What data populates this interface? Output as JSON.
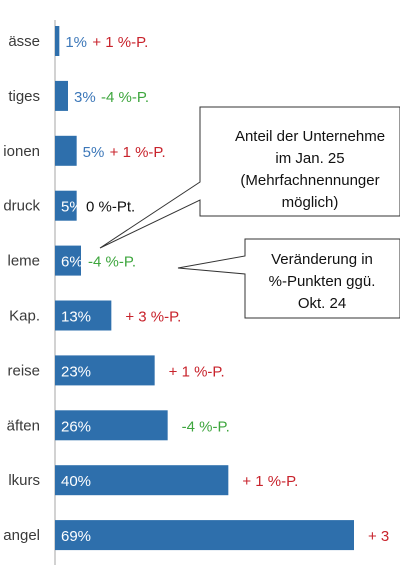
{
  "colors": {
    "bar": "#2e6fac",
    "value_on_bar": "#ffffff",
    "value_outside": "#3d78b9",
    "value_dark": "#111111",
    "change_positive": "#c8232c",
    "change_negative": "#3ea63e",
    "change_neutral": "#111111",
    "axis": "#a6a6a6",
    "callout_border": "#333333"
  },
  "chart_data": {
    "type": "bar",
    "orientation": "horizontal",
    "categories": [
      "ässe",
      "tiges",
      "ionen",
      "druck",
      "leme",
      "Kap.",
      "reise",
      "äften",
      "lkurs",
      "angel"
    ],
    "value_labels": [
      "1%",
      "3%",
      "5%",
      "5%",
      "6%",
      "13%",
      "23%",
      "26%",
      "40%",
      "69%"
    ],
    "values": [
      1,
      3,
      5,
      5,
      6,
      13,
      23,
      26,
      40,
      69
    ],
    "value_unit": "%",
    "changes": [
      1,
      -4,
      1,
      0,
      -4,
      3,
      1,
      -4,
      1,
      3
    ],
    "change_labels": [
      "+ 1 %-P.",
      "-4 %-P.",
      "+ 1 %-P.",
      "0 %-Pt.",
      "-4 %-P.",
      "+ 3 %-P.",
      "+ 1 %-P.",
      "-4 %-P.",
      "+ 1 %-P.",
      "+ 3"
    ],
    "annotations": [
      {
        "lines": [
          "Anteil der Unternehme",
          "im Jan. 25",
          "(Mehrfachnennunger",
          "möglich)"
        ]
      },
      {
        "lines": [
          "Veränderung in",
          "%-Punkten ggü.",
          "Okt. 24"
        ]
      }
    ],
    "xlim": [
      0,
      69
    ],
    "grid": false,
    "legend": "none"
  }
}
